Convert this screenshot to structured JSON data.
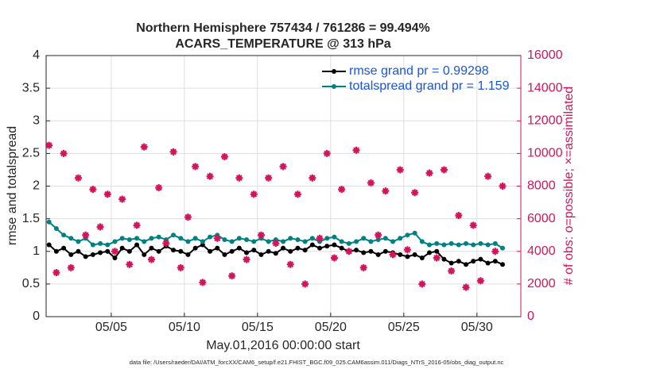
{
  "chart_data": {
    "type": "line",
    "title": "Northern Hemisphere 757434 / 761286 = 99.494%",
    "subtitle": "ACARS_TEMPERATURE @ 313 hPa",
    "x_label": "May.01,2016 00:00:00 start",
    "y_label": "rmse and totalspread",
    "y2_label": "# of obs: o=possible; ×=assimilated",
    "footnote": "data file: /Users/raeder/DAI/ATM_forcXX/CAM6_setup/f.e21.FHIST_BGC.f09_025.CAM6assim.011/Diags_NTrS_2016-05/obs_diag_output.nc",
    "x": [
      0.75,
      1.25,
      1.75,
      2.25,
      2.75,
      3.25,
      3.75,
      4.25,
      4.75,
      5.25,
      5.75,
      6.25,
      6.75,
      7.25,
      7.75,
      8.25,
      8.75,
      9.25,
      9.75,
      10.25,
      10.75,
      11.25,
      11.75,
      12.25,
      12.75,
      13.25,
      13.75,
      14.25,
      14.75,
      15.25,
      15.75,
      16.25,
      16.75,
      17.25,
      17.75,
      18.25,
      18.75,
      19.25,
      19.75,
      20.25,
      20.75,
      21.25,
      21.75,
      22.25,
      22.75,
      23.25,
      23.75,
      24.25,
      24.75,
      25.25,
      25.75,
      26.25,
      26.75,
      27.25,
      27.75,
      28.25,
      28.75,
      29.25,
      29.75,
      30.25,
      30.75,
      31.25,
      31.75
    ],
    "xlim": [
      0.55,
      33
    ],
    "xticks": [
      {
        "value": 5,
        "label": "05/05"
      },
      {
        "value": 10,
        "label": "05/10"
      },
      {
        "value": 15,
        "label": "05/15"
      },
      {
        "value": 20,
        "label": "05/20"
      },
      {
        "value": 25,
        "label": "05/25"
      },
      {
        "value": 30,
        "label": "05/30"
      }
    ],
    "ylim": [
      0,
      4
    ],
    "yticks": [
      0,
      0.5,
      1,
      1.5,
      2,
      2.5,
      3,
      3.5,
      4
    ],
    "y2lim": [
      0,
      16000
    ],
    "y2ticks": [
      0,
      2000,
      4000,
      6000,
      8000,
      10000,
      12000,
      14000,
      16000
    ],
    "grid": true,
    "legend": "upper right",
    "series": [
      {
        "name": "rmse grand pr = 0.99298",
        "color": "#000000",
        "values": [
          1.1,
          1.0,
          1.05,
          0.95,
          1.0,
          0.92,
          0.95,
          0.98,
          1.0,
          0.9,
          1.05,
          1.0,
          1.1,
          0.95,
          1.05,
          1.0,
          1.08,
          1.02,
          1.0,
          0.95,
          1.05,
          1.1,
          1.0,
          1.05,
          0.95,
          1.0,
          1.05,
          0.98,
          1.02,
          0.95,
          1.0,
          0.97,
          1.05,
          1.0,
          1.05,
          1.02,
          1.1,
          1.05,
          1.08,
          1.1,
          1.05,
          1.0,
          1.02,
          0.98,
          1.0,
          0.95,
          1.0,
          0.98,
          0.95,
          0.92,
          0.95,
          0.9,
          0.98,
          1.0,
          0.88,
          0.82,
          0.85,
          0.8,
          0.85,
          0.88,
          0.82,
          0.85,
          0.8
        ]
      },
      {
        "name": "totalspread grand pr = 1.159",
        "color": "#008080",
        "values": [
          1.45,
          1.35,
          1.25,
          1.2,
          1.15,
          1.2,
          1.1,
          1.12,
          1.1,
          1.15,
          1.2,
          1.18,
          1.2,
          1.15,
          1.2,
          1.22,
          1.18,
          1.25,
          1.2,
          1.15,
          1.2,
          1.15,
          1.22,
          1.25,
          1.18,
          1.15,
          1.2,
          1.18,
          1.15,
          1.2,
          1.15,
          1.18,
          1.15,
          1.2,
          1.18,
          1.15,
          1.2,
          1.15,
          1.2,
          1.22,
          1.15,
          1.12,
          1.15,
          1.2,
          1.15,
          1.18,
          1.2,
          1.15,
          1.2,
          1.25,
          1.28,
          1.15,
          1.1,
          1.12,
          1.1,
          1.12,
          1.1,
          1.12,
          1.1,
          1.12,
          1.1,
          1.12,
          1.05
        ]
      },
      {
        "color": "#d4145a",
        "axis": "y2",
        "values": [
          10500,
          2700,
          10000,
          3000,
          8500,
          5000,
          7800,
          5500,
          7500,
          4000,
          7200,
          3200,
          5600,
          10400,
          3500,
          7900,
          4500,
          10100,
          3000,
          6100,
          9200,
          2100,
          8600,
          4800,
          9800,
          2500,
          8500,
          3500,
          7500,
          5000,
          8500,
          4500,
          9200,
          3200,
          7500,
          2000,
          8500,
          4800,
          10000,
          3600,
          7800,
          4000,
          10200,
          3000,
          8200,
          5000,
          7700,
          3800,
          9000,
          4100,
          7600,
          2000,
          8800,
          3600,
          9000,
          2800,
          6200,
          1800,
          5600,
          2200,
          8600,
          4000,
          8000
        ]
      }
    ]
  }
}
